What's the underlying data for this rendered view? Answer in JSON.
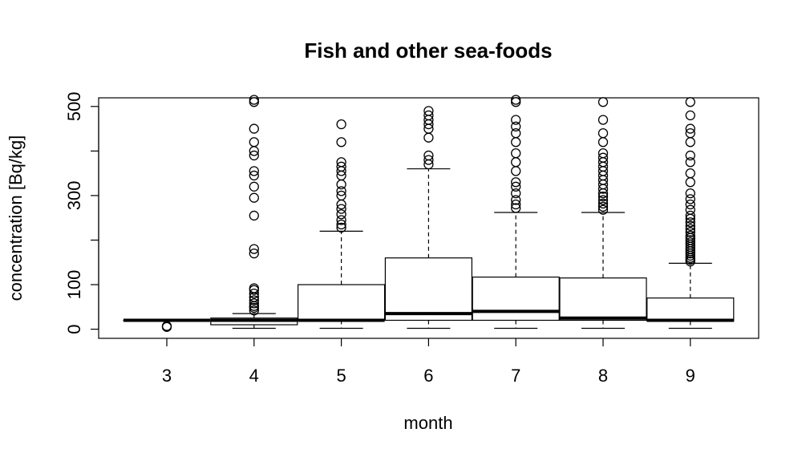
{
  "chart_data": {
    "type": "boxplot",
    "title": "Fish and other sea-foods",
    "xlabel": "month",
    "ylabel": "concentration [Bq/kg]",
    "ylim": [
      -20,
      520
    ],
    "yticks": [
      0,
      100,
      300,
      500
    ],
    "categories": [
      "3",
      "4",
      "5",
      "6",
      "7",
      "8",
      "9"
    ],
    "boxes": [
      {
        "category": "3",
        "whisker_low": 20,
        "q1": 20,
        "median": 20,
        "q3": 20,
        "whisker_high": 20,
        "outliers": [
          5,
          7
        ]
      },
      {
        "category": "4",
        "whisker_low": 2,
        "q1": 10,
        "median": 20,
        "q3": 25,
        "whisker_high": 35,
        "outliers": [
          42,
          48,
          52,
          58,
          65,
          72,
          80,
          88,
          92,
          170,
          180,
          255,
          295,
          320,
          345,
          355,
          390,
          400,
          420,
          450,
          510,
          515
        ]
      },
      {
        "category": "5",
        "whisker_low": 2,
        "q1": 20,
        "median": 20,
        "q3": 100,
        "whisker_high": 220,
        "outliers": [
          228,
          235,
          245,
          258,
          270,
          280,
          300,
          310,
          325,
          345,
          355,
          365,
          375,
          420,
          460
        ]
      },
      {
        "category": "6",
        "whisker_low": 2,
        "q1": 20,
        "median": 35,
        "q3": 160,
        "whisker_high": 360,
        "outliers": [
          370,
          380,
          390,
          430,
          450,
          460,
          470,
          480,
          490
        ]
      },
      {
        "category": "7",
        "whisker_low": 2,
        "q1": 20,
        "median": 40,
        "q3": 117,
        "whisker_high": 262,
        "outliers": [
          272,
          280,
          290,
          305,
          320,
          330,
          355,
          375,
          395,
          420,
          440,
          455,
          470,
          510,
          515
        ]
      },
      {
        "category": "8",
        "whisker_low": 2,
        "q1": 20,
        "median": 25,
        "q3": 115,
        "whisker_high": 262,
        "outliers": [
          268,
          275,
          282,
          290,
          298,
          305,
          315,
          325,
          335,
          345,
          355,
          365,
          375,
          385,
          395,
          420,
          440,
          470,
          510
        ]
      },
      {
        "category": "9",
        "whisker_low": 2,
        "q1": 18,
        "median": 20,
        "q3": 70,
        "whisker_high": 148,
        "outliers": [
          152,
          156,
          160,
          165,
          170,
          175,
          180,
          185,
          190,
          195,
          200,
          205,
          210,
          218,
          225,
          232,
          240,
          248,
          255,
          268,
          280,
          292,
          305,
          330,
          350,
          375,
          390,
          420,
          440,
          450,
          480,
          510
        ]
      }
    ]
  }
}
